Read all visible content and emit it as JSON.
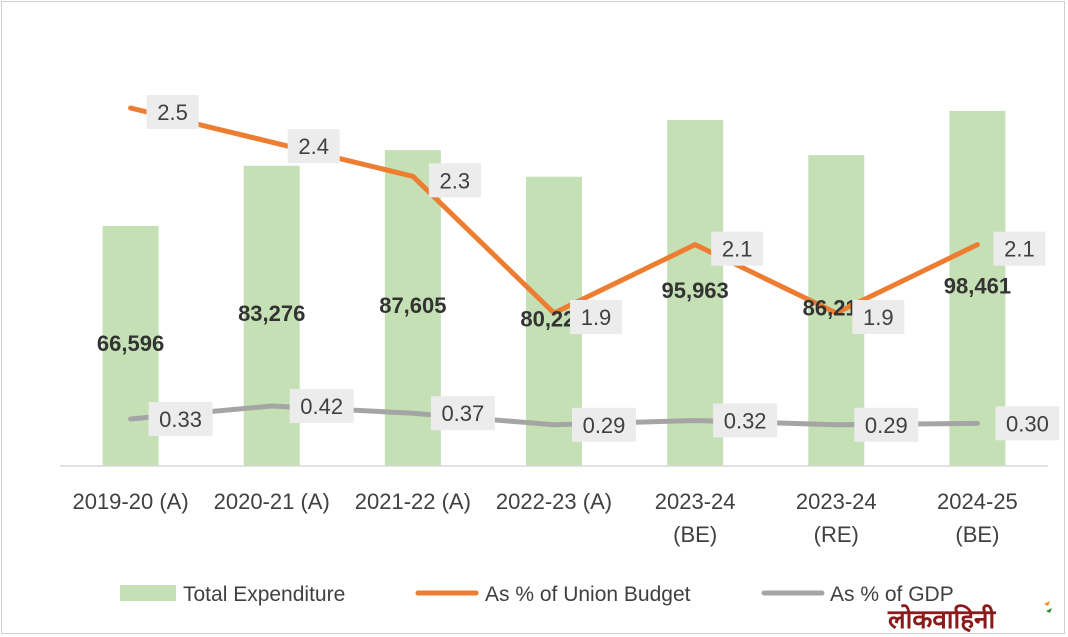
{
  "chart_data": {
    "type": "bar",
    "categories": [
      [
        "2019-20 (A)"
      ],
      [
        "2020-21 (A)"
      ],
      [
        "2021-22 (A)"
      ],
      [
        "2022-23 (A)"
      ],
      [
        "2023-24",
        "(BE)"
      ],
      [
        "2023-24",
        "(RE)"
      ],
      [
        "2024-25",
        "(BE)"
      ]
    ],
    "series": [
      {
        "name": "Total Expenditure",
        "type": "bar",
        "color": "#c5e0b4",
        "values": [
          66596,
          83276,
          87605,
          80229,
          95963,
          86216,
          98461
        ],
        "labels": [
          "66,596",
          "83,276",
          "87,605",
          "80,229",
          "95,963",
          "86,216",
          "98,461"
        ]
      },
      {
        "name": "As % of Union Budget",
        "type": "line",
        "color": "#ed7d31",
        "values": [
          2.5,
          2.4,
          2.3,
          1.9,
          2.1,
          1.9,
          2.1
        ],
        "labels": [
          "2.5",
          "2.4",
          "2.3",
          "1.9",
          "2.1",
          "1.9",
          "2.1"
        ]
      },
      {
        "name": "As % of GDP",
        "type": "line",
        "color": "#a5a5a5",
        "values": [
          0.33,
          0.42,
          0.37,
          0.29,
          0.32,
          0.29,
          0.3
        ],
        "labels": [
          "0.33",
          "0.42",
          "0.37",
          "0.29",
          "0.32",
          "0.29",
          "0.30"
        ]
      }
    ],
    "title": "",
    "xlabel": "",
    "ylabel": "",
    "grid": false,
    "legend": "bottom"
  },
  "watermark": "लोकवाहिनी"
}
